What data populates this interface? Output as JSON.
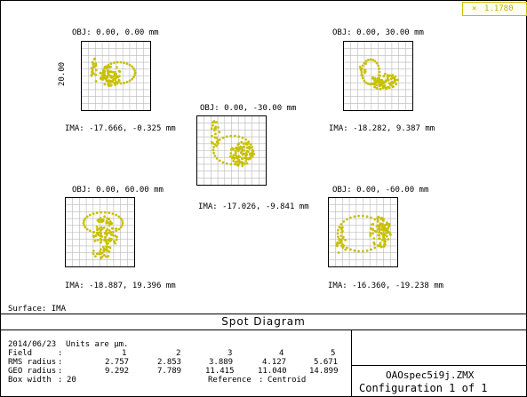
{
  "legend": {
    "marker": "×",
    "label": "1.1780",
    "color": "#c8c000"
  },
  "plots": [
    {
      "obj": "OBJ: 0.00, 0.00 mm",
      "ima": "IMA: -17.666, -0.325 mm"
    },
    {
      "obj": "OBJ: 0.00, 30.00 mm",
      "ima": "IMA: -18.282, 9.387 mm"
    },
    {
      "obj": "OBJ: 0.00, -30.00 mm",
      "ima": "IMA: -17.026, -9.841 mm"
    },
    {
      "obj": "OBJ: 0.00, 60.00 mm",
      "ima": "IMA: -18.887, 19.396 mm"
    },
    {
      "obj": "OBJ: 0.00, -60.00 mm",
      "ima": "IMA: -16.360, -19.238 mm"
    }
  ],
  "scale_label": "20.00",
  "surface": "Surface: IMA",
  "title": "Spot Diagram",
  "info": {
    "date_line": "2014/06/23  Units are µm.",
    "field_label": "Field",
    "field_values": [
      "1",
      "2",
      "3",
      "4",
      "5"
    ],
    "rms_label": "RMS radius",
    "rms_values": [
      "2.757",
      "2.853",
      "3.889",
      "4.127",
      "5.671"
    ],
    "geo_label": "GEO radius",
    "geo_values": [
      "9.292",
      "7.789",
      "11.415",
      "11.040",
      "14.899"
    ],
    "box_label": "Box width",
    "box_value": "20",
    "reference_label": "Reference",
    "reference_value": "Centroid",
    "colon": ":"
  },
  "file": {
    "name": "OAOspec5i9j.ZMX",
    "config": "Configuration 1 of 1"
  }
}
